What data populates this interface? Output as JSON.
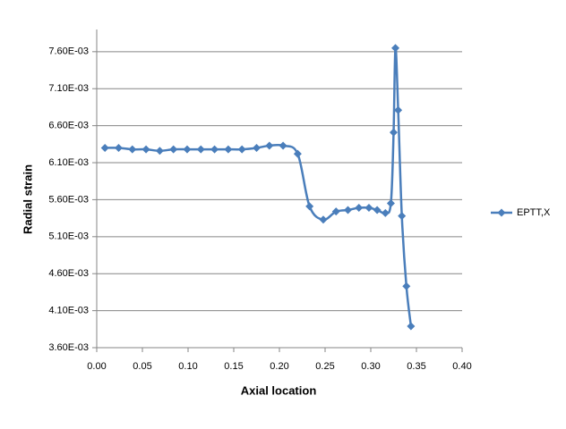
{
  "chart_data": {
    "type": "line",
    "x_label": "Axial location",
    "y_label": "Radial strain",
    "series": [
      {
        "name": "EPTT,X",
        "color": "#4a7ebb",
        "x": [
          0.009,
          0.024,
          0.039,
          0.054,
          0.069,
          0.084,
          0.099,
          0.114,
          0.129,
          0.144,
          0.159,
          0.175,
          0.189,
          0.204,
          0.22,
          0.233,
          0.248,
          0.262,
          0.275,
          0.287,
          0.298,
          0.307,
          0.316,
          0.322,
          0.325,
          0.327,
          0.33,
          0.334,
          0.339,
          0.344
        ],
        "values": [
          0.0063,
          0.0063,
          0.00628,
          0.00628,
          0.00626,
          0.00628,
          0.00628,
          0.00628,
          0.00628,
          0.00628,
          0.00628,
          0.0063,
          0.00633,
          0.00633,
          0.00622,
          0.00551,
          0.00533,
          0.00544,
          0.00546,
          0.00549,
          0.00549,
          0.00546,
          0.00542,
          0.00555,
          0.00651,
          0.00765,
          0.00681,
          0.00538,
          0.00443,
          0.00389
        ]
      }
    ],
    "xlim": [
      0,
      0.4
    ],
    "xticks": [
      {
        "value": 0,
        "label": "0.00"
      },
      0.05,
      {
        "value": 0.1,
        "label": "0.10"
      },
      0.15,
      {
        "value": 0.2,
        "label": "0.20"
      },
      0.25,
      {
        "value": 0.3,
        "label": "0.30"
      },
      0.35,
      {
        "value": 0.4,
        "label": "0.40"
      }
    ],
    "ylim": [
      0.0036,
      0.0079
    ],
    "yticks": [
      {
        "value": 0.0036,
        "label": "3.60E-03"
      },
      {
        "value": 0.0041,
        "label": "4.10E-03"
      },
      {
        "value": 0.0046,
        "label": "4.60E-03"
      },
      {
        "value": 0.0051,
        "label": "5.10E-03"
      },
      {
        "value": 0.0056,
        "label": "5.60E-03"
      },
      {
        "value": 0.0061,
        "label": "6.10E-03"
      },
      {
        "value": 0.0066,
        "label": "6.60E-03"
      },
      {
        "value": 0.0071,
        "label": "7.10E-03"
      },
      {
        "value": 0.0076,
        "label": "7.60E-03"
      }
    ],
    "grid": true,
    "smooth": true,
    "legend": "right"
  }
}
